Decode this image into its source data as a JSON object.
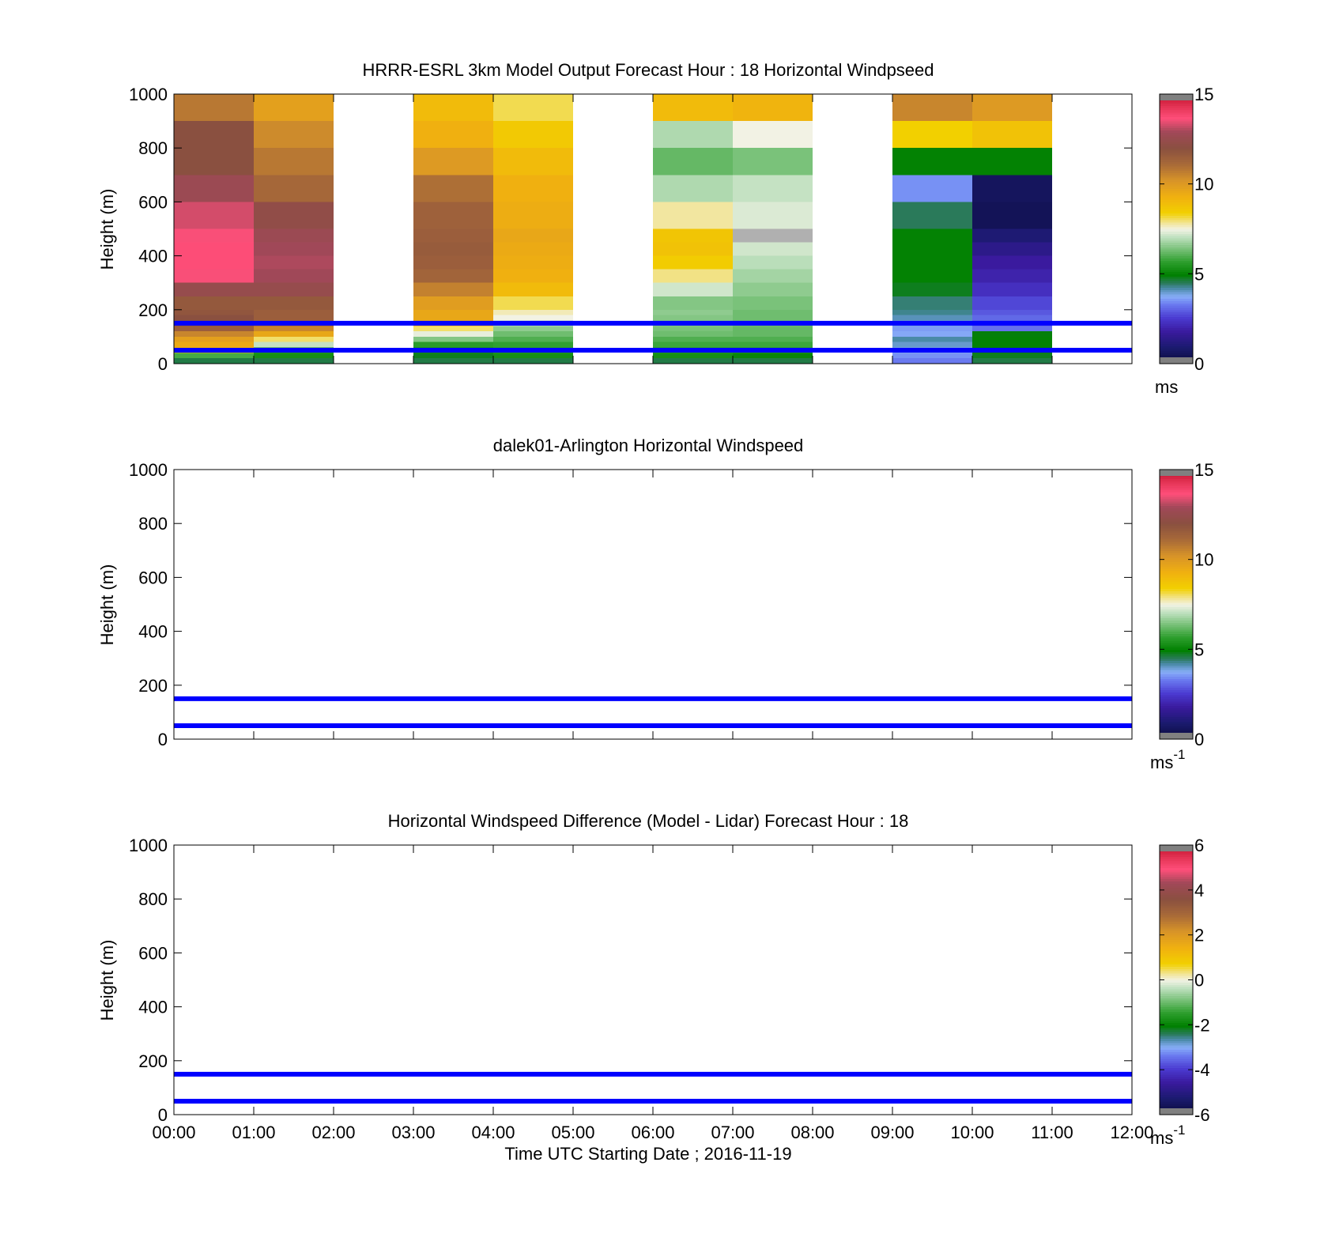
{
  "figure": {
    "xlabel": "Time UTC  Starting Date ; 2016-11-19",
    "x_ticks": [
      "00:00",
      "01:00",
      "02:00",
      "03:00",
      "04:00",
      "05:00",
      "06:00",
      "07:00",
      "08:00",
      "09:00",
      "10:00",
      "11:00",
      "12:00"
    ]
  },
  "chart_data": [
    {
      "type": "heatmap",
      "title": "HRRR-ESRL 3km Model Output   Forecast Hour : 18 Horizontal Windpseed",
      "ylabel": "Height (m)",
      "ylim": [
        0,
        1000
      ],
      "xlim": [
        0,
        12
      ],
      "y_ticks": [
        "0",
        "200",
        "400",
        "600",
        "800",
        "1000"
      ],
      "colorbar": {
        "ticks": [
          "0",
          "5",
          "10",
          "15"
        ],
        "range": [
          0,
          15
        ],
        "unit": "ms",
        "unit_sup": ""
      },
      "reference_lines_m": [
        50,
        150
      ],
      "line_color": "#0000ff",
      "value_scale": [
        0,
        15
      ],
      "columns": [
        {
          "x": 0,
          "cells": [
            [
              0,
              20,
              4.6
            ],
            [
              20,
              40,
              5.9
            ],
            [
              40,
              60,
              9.0
            ],
            [
              60,
              80,
              9.5
            ],
            [
              80,
              100,
              9.8
            ],
            [
              100,
              120,
              10.5
            ],
            [
              120,
              140,
              11.5
            ],
            [
              140,
              160,
              12.0
            ],
            [
              160,
              180,
              12.0
            ],
            [
              180,
              200,
              11.8
            ],
            [
              200,
              250,
              11.7
            ],
            [
              250,
              300,
              12.5
            ],
            [
              300,
              350,
              13.6
            ],
            [
              350,
              400,
              13.7
            ],
            [
              400,
              450,
              13.7
            ],
            [
              450,
              500,
              13.6
            ],
            [
              500,
              600,
              13.3
            ],
            [
              600,
              700,
              12.7
            ],
            [
              700,
              800,
              12.0
            ],
            [
              800,
              900,
              12.0
            ],
            [
              900,
              1000,
              10.8
            ]
          ]
        },
        {
          "x": 1,
          "cells": [
            [
              0,
              20,
              4.6
            ],
            [
              20,
              40,
              5.3
            ],
            [
              40,
              60,
              5.6
            ],
            [
              60,
              80,
              7.1
            ],
            [
              80,
              100,
              8.0
            ],
            [
              100,
              120,
              9.6
            ],
            [
              120,
              140,
              10.5
            ],
            [
              140,
              160,
              11.5
            ],
            [
              160,
              180,
              11.5
            ],
            [
              180,
              200,
              11.5
            ],
            [
              200,
              250,
              11.7
            ],
            [
              250,
              300,
              12.5
            ],
            [
              300,
              350,
              12.9
            ],
            [
              350,
              400,
              13.0
            ],
            [
              400,
              450,
              12.9
            ],
            [
              450,
              500,
              12.7
            ],
            [
              500,
              600,
              12.3
            ],
            [
              600,
              700,
              11.2
            ],
            [
              700,
              800,
              10.8
            ],
            [
              800,
              900,
              10.4
            ],
            [
              900,
              1000,
              9.8
            ]
          ]
        },
        {
          "x": 3,
          "cells": [
            [
              0,
              20,
              4.6
            ],
            [
              20,
              40,
              4.8
            ],
            [
              40,
              60,
              5.3
            ],
            [
              60,
              80,
              5.6
            ],
            [
              80,
              100,
              6.5
            ],
            [
              100,
              120,
              7.4
            ],
            [
              120,
              140,
              8.0
            ],
            [
              140,
              160,
              9.6
            ],
            [
              160,
              200,
              9.6
            ],
            [
              200,
              250,
              9.9
            ],
            [
              250,
              300,
              10.6
            ],
            [
              300,
              350,
              11.3
            ],
            [
              350,
              400,
              11.5
            ],
            [
              400,
              450,
              11.6
            ],
            [
              450,
              500,
              11.5
            ],
            [
              500,
              600,
              11.4
            ],
            [
              600,
              700,
              11.0
            ],
            [
              700,
              800,
              10.0
            ],
            [
              800,
              900,
              9.3
            ],
            [
              900,
              1000,
              9.0
            ]
          ]
        },
        {
          "x": 4,
          "cells": [
            [
              0,
              20,
              4.6
            ],
            [
              20,
              40,
              5.3
            ],
            [
              40,
              60,
              5.6
            ],
            [
              60,
              80,
              5.7
            ],
            [
              80,
              100,
              6.0
            ],
            [
              100,
              120,
              6.3
            ],
            [
              120,
              140,
              6.6
            ],
            [
              140,
              160,
              7.0
            ],
            [
              160,
              180,
              7.5
            ],
            [
              180,
              200,
              7.7
            ],
            [
              200,
              250,
              8.1
            ],
            [
              250,
              300,
              9.0
            ],
            [
              300,
              350,
              9.3
            ],
            [
              350,
              400,
              9.4
            ],
            [
              400,
              450,
              9.5
            ],
            [
              450,
              500,
              9.6
            ],
            [
              500,
              600,
              9.4
            ],
            [
              600,
              700,
              9.3
            ],
            [
              700,
              800,
              9.0
            ],
            [
              800,
              900,
              8.6
            ],
            [
              900,
              1000,
              8.1
            ]
          ]
        },
        {
          "x": 6,
          "cells": [
            [
              0,
              20,
              4.6
            ],
            [
              20,
              40,
              5.3
            ],
            [
              40,
              60,
              5.6
            ],
            [
              60,
              80,
              5.8
            ],
            [
              80,
              100,
              6.0
            ],
            [
              100,
              120,
              6.3
            ],
            [
              120,
              140,
              6.4
            ],
            [
              140,
              160,
              6.5
            ],
            [
              160,
              180,
              6.5
            ],
            [
              180,
              200,
              6.6
            ],
            [
              200,
              250,
              6.5
            ],
            [
              250,
              300,
              7.2
            ],
            [
              300,
              350,
              7.9
            ],
            [
              350,
              400,
              8.5
            ],
            [
              400,
              450,
              8.8
            ],
            [
              450,
              500,
              8.7
            ],
            [
              500,
              600,
              7.8
            ],
            [
              600,
              700,
              6.9
            ],
            [
              700,
              800,
              6.2
            ],
            [
              800,
              900,
              6.9
            ],
            [
              900,
              1000,
              9.0
            ]
          ]
        },
        {
          "x": 7,
          "cells": [
            [
              0,
              20,
              4.6
            ],
            [
              20,
              40,
              5.1
            ],
            [
              40,
              60,
              5.6
            ],
            [
              60,
              80,
              5.8
            ],
            [
              80,
              100,
              6.0
            ],
            [
              100,
              120,
              6.2
            ],
            [
              120,
              140,
              6.2
            ],
            [
              140,
              160,
              6.3
            ],
            [
              160,
              180,
              6.3
            ],
            [
              180,
              200,
              6.3
            ],
            [
              200,
              250,
              6.4
            ],
            [
              250,
              300,
              6.6
            ],
            [
              300,
              350,
              6.8
            ],
            [
              350,
              400,
              7.0
            ],
            [
              400,
              450,
              7.2
            ],
            [
              450,
              500,
              -1
            ],
            [
              500,
              600,
              7.3
            ],
            [
              600,
              700,
              7.1
            ],
            [
              700,
              800,
              6.4
            ],
            [
              800,
              900,
              7.5
            ],
            [
              900,
              1000,
              9.2
            ]
          ]
        },
        {
          "x": 9,
          "cells": [
            [
              0,
              20,
              3.3
            ],
            [
              20,
              40,
              3.5
            ],
            [
              40,
              60,
              3.8
            ],
            [
              60,
              80,
              4.0
            ],
            [
              80,
              100,
              4.2
            ],
            [
              100,
              120,
              3.7
            ],
            [
              120,
              140,
              3.6
            ],
            [
              140,
              160,
              3.9
            ],
            [
              160,
              180,
              4.1
            ],
            [
              180,
              200,
              4.3
            ],
            [
              200,
              250,
              4.4
            ],
            [
              250,
              300,
              4.8
            ],
            [
              300,
              350,
              5.0
            ],
            [
              350,
              400,
              5.0
            ],
            [
              400,
              450,
              5.0
            ],
            [
              450,
              500,
              5.0
            ],
            [
              500,
              600,
              4.5
            ],
            [
              600,
              700,
              3.5
            ],
            [
              700,
              800,
              5.0
            ],
            [
              800,
              900,
              8.4
            ],
            [
              900,
              1000,
              10.5
            ]
          ]
        },
        {
          "x": 10,
          "cells": [
            [
              0,
              20,
              4.6
            ],
            [
              20,
              40,
              4.8
            ],
            [
              40,
              60,
              4.9
            ],
            [
              60,
              80,
              5.0
            ],
            [
              80,
              100,
              5.0
            ],
            [
              100,
              120,
              4.9
            ],
            [
              120,
              140,
              3.2
            ],
            [
              140,
              160,
              3.0
            ],
            [
              160,
              180,
              3.1
            ],
            [
              180,
              200,
              2.9
            ],
            [
              200,
              250,
              2.7
            ],
            [
              250,
              300,
              2.3
            ],
            [
              300,
              350,
              2.0
            ],
            [
              350,
              400,
              1.8
            ],
            [
              400,
              450,
              1.4
            ],
            [
              450,
              500,
              1.0
            ],
            [
              500,
              600,
              0.5
            ],
            [
              600,
              700,
              0.6
            ],
            [
              700,
              800,
              5.0
            ],
            [
              800,
              900,
              8.8
            ],
            [
              900,
              1000,
              10.0
            ]
          ]
        }
      ]
    },
    {
      "type": "heatmap",
      "title": "dalek01-Arlington  Horizontal Windspeed",
      "ylabel": "Height (m)",
      "ylim": [
        0,
        1000
      ],
      "xlim": [
        0,
        12
      ],
      "y_ticks": [
        "0",
        "200",
        "400",
        "600",
        "800",
        "1000"
      ],
      "colorbar": {
        "ticks": [
          "0",
          "5",
          "10",
          "15"
        ],
        "range": [
          0,
          15
        ],
        "unit": "ms",
        "unit_sup": "-1"
      },
      "reference_lines_m": [
        50,
        150
      ],
      "line_color": "#0000ff",
      "value_scale": [
        0,
        15
      ],
      "columns": []
    },
    {
      "type": "heatmap",
      "title": "Horizontal Windspeed Difference (Model - Lidar) Forecast Hour : 18",
      "ylabel": "Height (m)",
      "ylim": [
        0,
        1000
      ],
      "xlim": [
        0,
        12
      ],
      "y_ticks": [
        "0",
        "200",
        "400",
        "600",
        "800",
        "1000"
      ],
      "colorbar": {
        "ticks": [
          "-6",
          "-4",
          "-2",
          "0",
          "2",
          "4",
          "6"
        ],
        "range": [
          -6,
          6
        ],
        "unit": "ms",
        "unit_sup": "-1"
      },
      "reference_lines_m": [
        50,
        150
      ],
      "line_color": "#0000ff",
      "value_scale": [
        -6,
        6
      ],
      "columns": []
    }
  ],
  "colormap_stops": [
    [
      0.0,
      "#0b0b3a"
    ],
    [
      0.06,
      "#1a1a6e"
    ],
    [
      0.12,
      "#3a1a9e"
    ],
    [
      0.17,
      "#4a3ad0"
    ],
    [
      0.22,
      "#6a7af0"
    ],
    [
      0.25,
      "#88aef8"
    ],
    [
      0.28,
      "#4a8aa8"
    ],
    [
      0.3,
      "#2a7a5a"
    ],
    [
      0.33,
      "#008000"
    ],
    [
      0.38,
      "#30a030"
    ],
    [
      0.43,
      "#7fc47f"
    ],
    [
      0.47,
      "#bfe0bf"
    ],
    [
      0.5,
      "#f2f2e4"
    ],
    [
      0.52,
      "#f2e6a0"
    ],
    [
      0.56,
      "#f2d000"
    ],
    [
      0.62,
      "#f0b010"
    ],
    [
      0.68,
      "#d89428"
    ],
    [
      0.74,
      "#a86a38"
    ],
    [
      0.8,
      "#8a5040"
    ],
    [
      0.86,
      "#a04858"
    ],
    [
      0.91,
      "#ff4f7a"
    ],
    [
      0.96,
      "#e03050"
    ],
    [
      1.0,
      "#c0102a"
    ]
  ]
}
